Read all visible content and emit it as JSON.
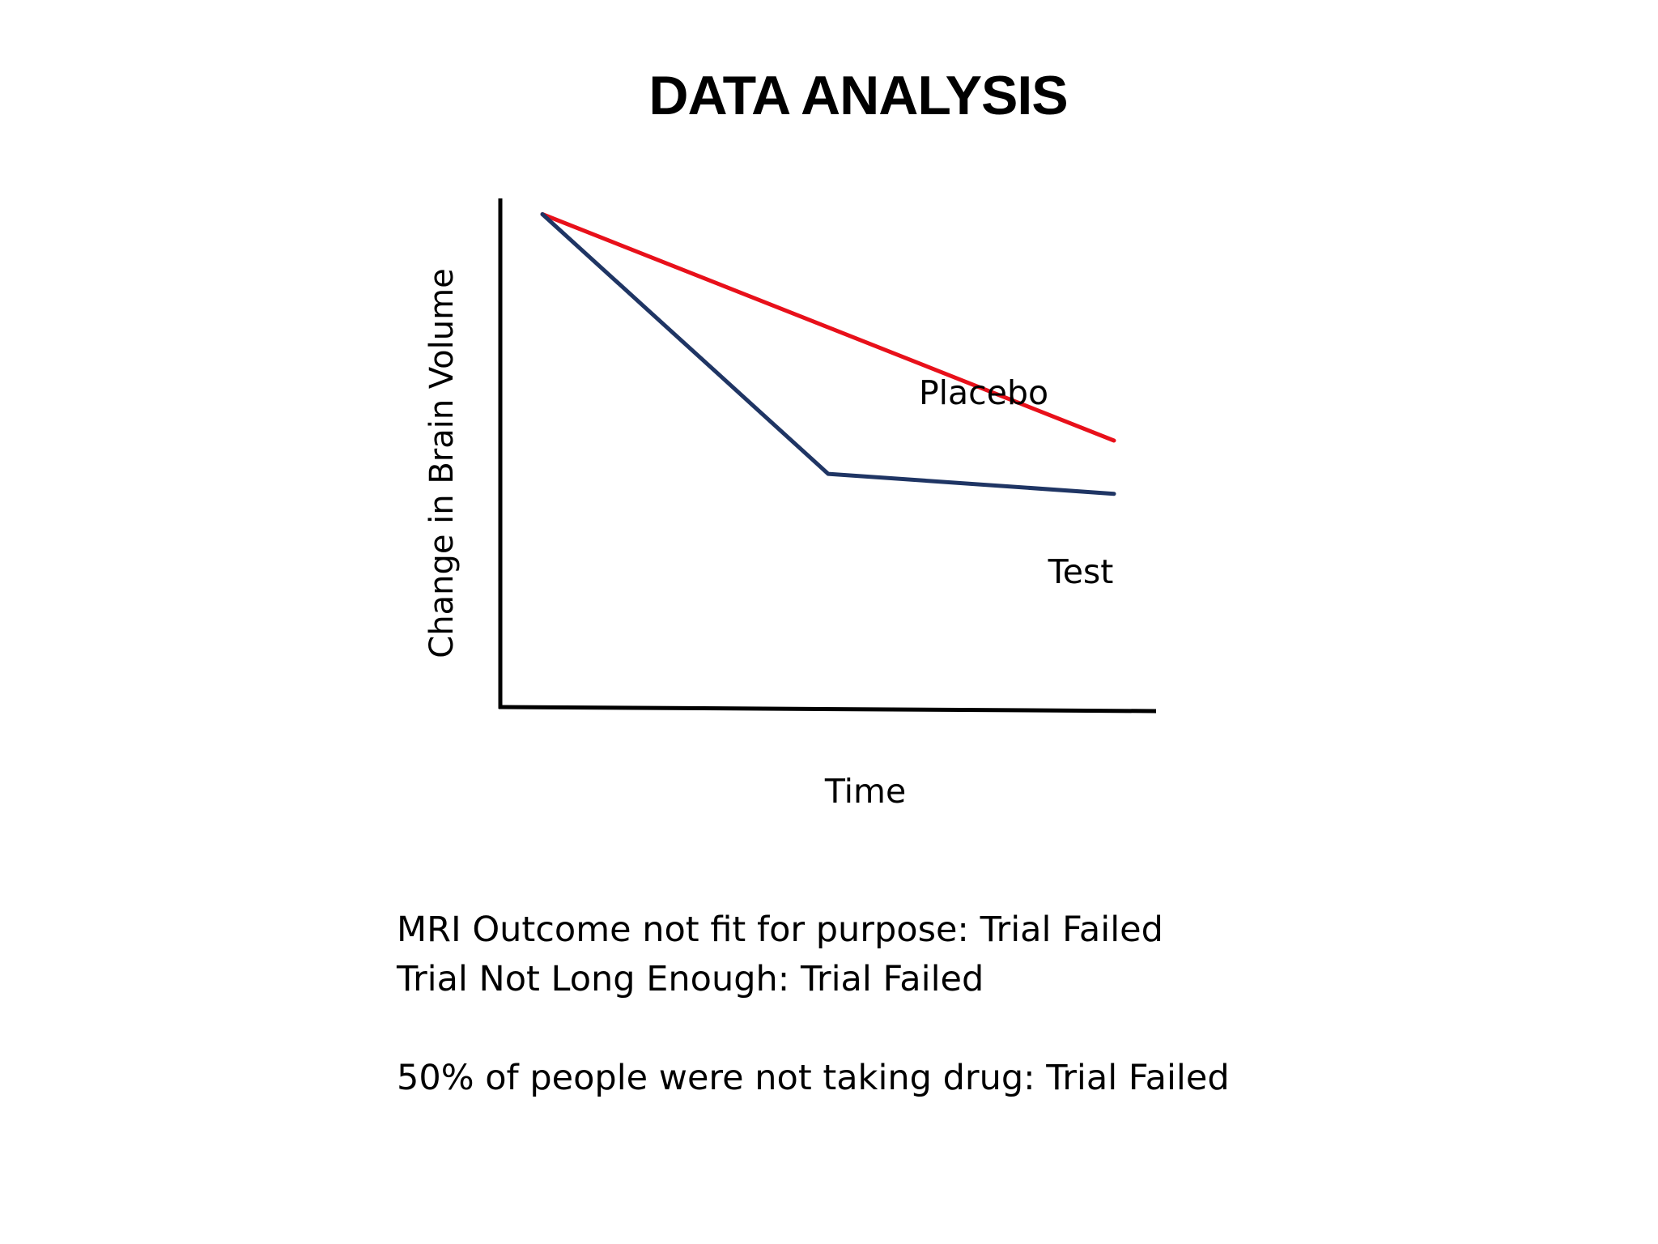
{
  "title": "DATA ANALYSIS",
  "chart_data": {
    "type": "line",
    "title": "",
    "xlabel": "Time",
    "ylabel": "Change in Brain Volume",
    "xlim": [
      0,
      2
    ],
    "ylim": [
      0,
      10
    ],
    "x": [
      0,
      1,
      2
    ],
    "grid": false,
    "legend": "none",
    "series": [
      {
        "name": "Placebo",
        "values": [
          7.5,
          5.8,
          4.1
        ],
        "color": "#e8101a"
      },
      {
        "name": "Test",
        "values": [
          7.5,
          3.6,
          3.3
        ],
        "color": "#1f3564"
      }
    ]
  },
  "notes": {
    "line1": "MRI Outcome not fit for purpose: Trial Failed",
    "line2": "Trial Not Long Enough: Trial Failed",
    "line3": "50% of people were not taking drug: Trial Failed"
  }
}
